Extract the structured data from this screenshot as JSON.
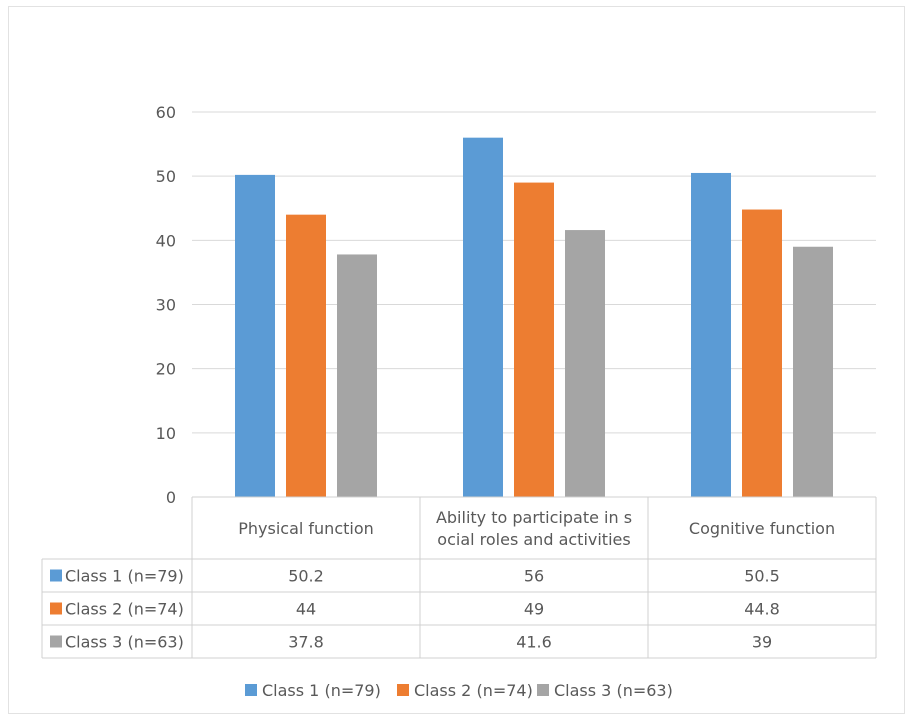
{
  "chart_data": {
    "type": "bar",
    "categories": [
      "Physical function",
      "Ability to participate in social roles and activities",
      "Cognitive function"
    ],
    "category_lines": [
      [
        "Physical function"
      ],
      [
        "Ability to participate in s",
        "ocial roles and activities"
      ],
      [
        "Cognitive function"
      ]
    ],
    "series": [
      {
        "name": "Class 1 (n=79)",
        "color": "#5b9bd5",
        "values": [
          50.2,
          56,
          50.5
        ],
        "labels": [
          "50.2",
          "56",
          "50.5"
        ]
      },
      {
        "name": "Class 2 (n=74)",
        "color": "#ed7d31",
        "values": [
          44,
          49,
          44.8
        ],
        "labels": [
          "44",
          "49",
          "44.8"
        ]
      },
      {
        "name": "Class 3 (n=63)",
        "color": "#a5a5a5",
        "values": [
          37.8,
          41.6,
          39
        ],
        "labels": [
          "37.8",
          "41.6",
          "39"
        ]
      }
    ],
    "ylim": [
      0,
      60
    ],
    "yticks": [
      "0",
      "10",
      "20",
      "30",
      "40",
      "50",
      "60"
    ],
    "grid": true,
    "data_table": true,
    "legend_position": "bottom"
  }
}
